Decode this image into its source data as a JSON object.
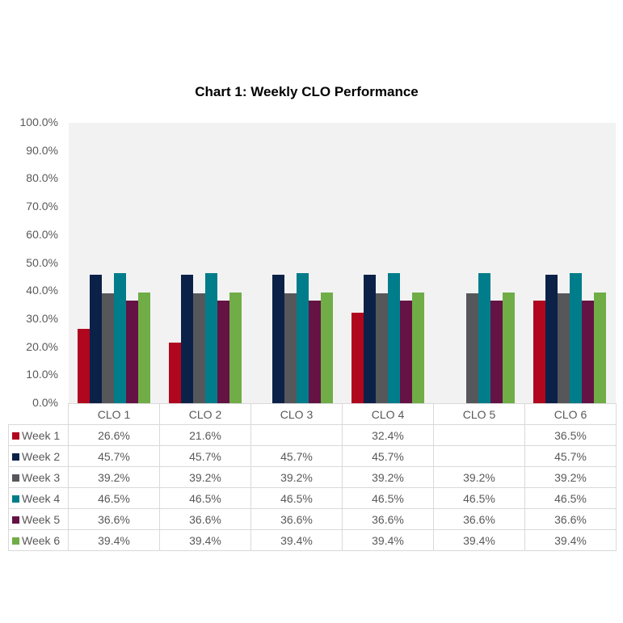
{
  "chart_data": {
    "type": "bar",
    "title": "Chart 1: Weekly CLO Performance",
    "categories": [
      "CLO 1",
      "CLO 2",
      "CLO 3",
      "CLO 4",
      "CLO 5",
      "CLO 6"
    ],
    "ylim": [
      0,
      100
    ],
    "yticks": [
      "0.0%",
      "10.0%",
      "20.0%",
      "30.0%",
      "40.0%",
      "50.0%",
      "60.0%",
      "70.0%",
      "80.0%",
      "90.0%",
      "100.0%"
    ],
    "legend": "bottom-table",
    "grid": false,
    "series": [
      {
        "name": "Week 1",
        "color": "#b0061e",
        "values": [
          26.6,
          21.6,
          null,
          32.4,
          null,
          36.5
        ],
        "labels": [
          "26.6%",
          "21.6%",
          "",
          "32.4%",
          "",
          "36.5%"
        ]
      },
      {
        "name": "Week 2",
        "color": "#0c2148",
        "values": [
          45.7,
          45.7,
          45.7,
          45.7,
          null,
          45.7
        ],
        "labels": [
          "45.7%",
          "45.7%",
          "45.7%",
          "45.7%",
          "",
          "45.7%"
        ]
      },
      {
        "name": "Week 3",
        "color": "#56575b",
        "values": [
          39.2,
          39.2,
          39.2,
          39.2,
          39.2,
          39.2
        ],
        "labels": [
          "39.2%",
          "39.2%",
          "39.2%",
          "39.2%",
          "39.2%",
          "39.2%"
        ]
      },
      {
        "name": "Week 4",
        "color": "#007d8a",
        "values": [
          46.5,
          46.5,
          46.5,
          46.5,
          46.5,
          46.5
        ],
        "labels": [
          "46.5%",
          "46.5%",
          "46.5%",
          "46.5%",
          "46.5%",
          "46.5%"
        ]
      },
      {
        "name": "Week 5",
        "color": "#641344",
        "values": [
          36.6,
          36.6,
          36.6,
          36.6,
          36.6,
          36.6
        ],
        "labels": [
          "36.6%",
          "36.6%",
          "36.6%",
          "36.6%",
          "36.6%",
          "36.6%"
        ]
      },
      {
        "name": "Week 6",
        "color": "#70ad47",
        "values": [
          39.4,
          39.4,
          39.4,
          39.4,
          39.4,
          39.4
        ],
        "labels": [
          "39.4%",
          "39.4%",
          "39.4%",
          "39.4%",
          "39.4%",
          "39.4%"
        ]
      }
    ]
  }
}
